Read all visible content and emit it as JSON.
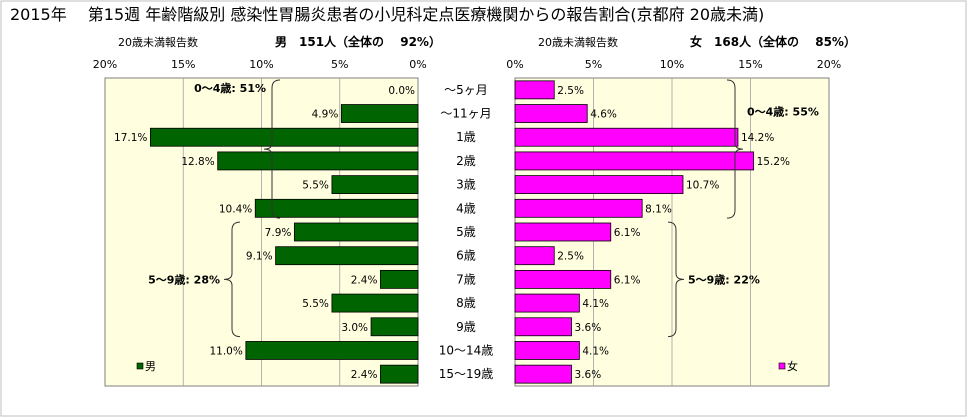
{
  "title": "2015年　 第15週 年齢階級別 感染性胃腸炎患者の小児科定点医療機関からの報告割合(京都府 20歳未満)",
  "chart_data": [
    {
      "type": "bar",
      "orientation": "horizontal",
      "direction": "right-to-left",
      "header_left": "20歳未満報告数",
      "header_right": "男　151人（全体の　 92%）",
      "ticks": [
        "20%",
        "15%",
        "10%",
        "5%",
        "0%"
      ],
      "xlim": [
        0,
        20
      ],
      "categories": [
        "～5ヶ月",
        "～11ヶ月",
        "1歳",
        "2歳",
        "3歳",
        "4歳",
        "5歳",
        "6歳",
        "7歳",
        "8歳",
        "9歳",
        "10～14歳",
        "15～19歳"
      ],
      "values": [
        0.0,
        4.9,
        17.1,
        12.8,
        5.5,
        10.4,
        7.9,
        9.1,
        2.4,
        5.5,
        3.0,
        11.0,
        2.4
      ],
      "labels": [
        "0.0%",
        "4.9%",
        "17.1%",
        "12.8%",
        "5.5%",
        "10.4%",
        "7.9%",
        "9.1%",
        "2.4%",
        "5.5%",
        "3.0%",
        "11.0%",
        "2.4%"
      ],
      "legend": "男",
      "color": "#006400",
      "brackets": [
        {
          "label": "0～4歳: 51%",
          "from": 0,
          "to": 5
        },
        {
          "label": "5～9歳: 28%",
          "from": 6,
          "to": 10
        }
      ]
    },
    {
      "type": "bar",
      "orientation": "horizontal",
      "direction": "left-to-right",
      "header_left": "20歳未満報告数",
      "header_right": "女　168人（全体の　 85%）",
      "ticks": [
        "0%",
        "5%",
        "10%",
        "15%",
        "20%"
      ],
      "xlim": [
        0,
        20
      ],
      "categories": [
        "～5ヶ月",
        "～11ヶ月",
        "1歳",
        "2歳",
        "3歳",
        "4歳",
        "5歳",
        "6歳",
        "7歳",
        "8歳",
        "9歳",
        "10～14歳",
        "15～19歳"
      ],
      "values": [
        2.5,
        4.6,
        14.2,
        15.2,
        10.7,
        8.1,
        6.1,
        2.5,
        6.1,
        4.1,
        3.6,
        4.1,
        3.6
      ],
      "labels": [
        "2.5%",
        "4.6%",
        "14.2%",
        "15.2%",
        "10.7%",
        "8.1%",
        "6.1%",
        "2.5%",
        "6.1%",
        "4.1%",
        "3.6%",
        "4.1%",
        "3.6%"
      ],
      "legend": "女",
      "color": "#FF00FF",
      "brackets": [
        {
          "label": "0～4歳: 55%",
          "from": 0,
          "to": 5
        },
        {
          "label": "5～9歳: 22%",
          "from": 6,
          "to": 10
        }
      ]
    }
  ]
}
